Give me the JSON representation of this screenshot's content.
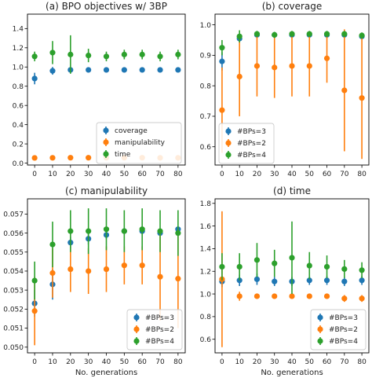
{
  "colors": {
    "blue": "#1f77b4",
    "orange": "#ff7f0e",
    "green": "#2ca02c",
    "frame": "#000000",
    "legend_border": "#cccccc"
  },
  "chart_data": [
    {
      "id": "a",
      "type": "scatter",
      "title": "(a) BPO objectives w/ 3BP",
      "xlabel": "",
      "ylabel": "",
      "x": [
        0,
        10,
        20,
        30,
        40,
        50,
        60,
        70,
        80
      ],
      "xlim": [
        -4,
        84
      ],
      "ylim": [
        -0.02,
        1.55
      ],
      "xticks": [
        0,
        10,
        20,
        30,
        40,
        50,
        60,
        70,
        80
      ],
      "yticks": [
        0.0,
        0.2,
        0.4,
        0.6,
        0.8,
        1.0,
        1.2,
        1.4
      ],
      "ytick_labels": [
        "0.0",
        "0.2",
        "0.4",
        "0.6",
        "0.8",
        "1.0",
        "1.2",
        "1.4"
      ],
      "legend_position": "bottom-right",
      "series": [
        {
          "name": "coverage",
          "color": "#1f77b4",
          "values": [
            0.88,
            0.96,
            0.97,
            0.97,
            0.97,
            0.97,
            0.97,
            0.97,
            0.97
          ],
          "err": [
            0.06,
            0.04,
            0.01,
            0.01,
            0.01,
            0.01,
            0.01,
            0.01,
            0.01
          ]
        },
        {
          "name": "manipulability",
          "color": "#ff7f0e",
          "values": [
            0.054,
            0.055,
            0.056,
            0.056,
            0.056,
            0.056,
            0.056,
            0.055,
            0.055
          ],
          "err": [
            0.004,
            0.004,
            0.004,
            0.004,
            0.004,
            0.004,
            0.004,
            0.004,
            0.004
          ]
        },
        {
          "name": "time",
          "color": "#2ca02c",
          "values": [
            1.11,
            1.15,
            1.13,
            1.12,
            1.11,
            1.13,
            1.13,
            1.11,
            1.13
          ],
          "err": [
            0.05,
            0.12,
            0.2,
            0.07,
            0.05,
            0.05,
            0.05,
            0.05,
            0.05
          ]
        }
      ]
    },
    {
      "id": "b",
      "type": "scatter",
      "title": "(b) coverage",
      "xlabel": "",
      "ylabel": "",
      "x": [
        0,
        10,
        20,
        30,
        40,
        50,
        60,
        70,
        80
      ],
      "xlim": [
        -4,
        84
      ],
      "ylim": [
        0.54,
        1.035
      ],
      "xticks": [
        0,
        10,
        20,
        30,
        40,
        50,
        60,
        70,
        80
      ],
      "yticks": [
        0.6,
        0.7,
        0.8,
        0.9,
        1.0
      ],
      "ytick_labels": [
        "0.6",
        "0.7",
        "0.8",
        "0.9",
        "1.0"
      ],
      "legend_position": "bottom-left",
      "series": [
        {
          "name": "#BPs=3",
          "color": "#1f77b4",
          "values": [
            0.88,
            0.955,
            0.967,
            0.967,
            0.967,
            0.967,
            0.967,
            0.967,
            0.962
          ],
          "err": [
            0.03,
            0.01,
            0.01,
            0.01,
            0.01,
            0.01,
            0.01,
            0.01,
            0.01
          ]
        },
        {
          "name": "#BPs=2",
          "color": "#ff7f0e",
          "values": [
            0.72,
            0.83,
            0.865,
            0.86,
            0.865,
            0.865,
            0.89,
            0.785,
            0.76
          ],
          "err": [
            0.14,
            0.13,
            0.1,
            0.1,
            0.1,
            0.1,
            0.08,
            0.2,
            0.2
          ]
        },
        {
          "name": "#BPs=4",
          "color": "#2ca02c",
          "values": [
            0.925,
            0.962,
            0.97,
            0.967,
            0.97,
            0.97,
            0.97,
            0.97,
            0.965
          ],
          "err": [
            0.025,
            0.02,
            0.01,
            0.01,
            0.01,
            0.01,
            0.01,
            0.01,
            0.01
          ]
        }
      ]
    },
    {
      "id": "c",
      "type": "scatter",
      "title": "(c) manipulability",
      "xlabel": "No. generations",
      "ylabel": "",
      "x": [
        0,
        10,
        20,
        30,
        40,
        50,
        60,
        70,
        80
      ],
      "xlim": [
        -4,
        84
      ],
      "ylim": [
        0.0497,
        0.0578
      ],
      "xticks": [
        0,
        10,
        20,
        30,
        40,
        50,
        60,
        70,
        80
      ],
      "yticks": [
        0.05,
        0.051,
        0.052,
        0.053,
        0.054,
        0.055,
        0.056,
        0.057
      ],
      "ytick_labels": [
        "0.050",
        "0.051",
        "0.052",
        "0.053",
        "0.054",
        "0.055",
        "0.056",
        "0.057"
      ],
      "legend_position": "bottom-right",
      "series": [
        {
          "name": "#BPs=3",
          "color": "#1f77b4",
          "values": [
            0.0523,
            0.0533,
            0.0555,
            0.0557,
            0.0559,
            0.0561,
            0.0561,
            0.056,
            0.0562
          ],
          "err": [
            0.0007,
            0.0008,
            0.0003,
            0.0003,
            0.0002,
            0.0001,
            0.0001,
            0.0001,
            0.0001
          ]
        },
        {
          "name": "#BPs=2",
          "color": "#ff7f0e",
          "values": [
            0.0519,
            0.0539,
            0.0541,
            0.054,
            0.0541,
            0.0543,
            0.0543,
            0.0537,
            0.0536
          ],
          "err": [
            0.0018,
            0.0013,
            0.0012,
            0.0012,
            0.0012,
            0.001,
            0.001,
            0.0023,
            0.0026
          ]
        },
        {
          "name": "#BPs=4",
          "color": "#2ca02c",
          "values": [
            0.0535,
            0.0554,
            0.0561,
            0.0561,
            0.0562,
            0.0561,
            0.0562,
            0.0561,
            0.056
          ],
          "err": [
            0.001,
            0.0012,
            0.0011,
            0.0012,
            0.0011,
            0.0011,
            0.0011,
            0.0011,
            0.0012
          ]
        }
      ]
    },
    {
      "id": "d",
      "type": "scatter",
      "title": "(d) time",
      "xlabel": "No. generations",
      "ylabel": "",
      "x": [
        0,
        10,
        20,
        30,
        40,
        50,
        60,
        70,
        80
      ],
      "xlim": [
        -4,
        84
      ],
      "ylim": [
        0.48,
        1.84
      ],
      "xticks": [
        0,
        10,
        20,
        30,
        40,
        50,
        60,
        70,
        80
      ],
      "yticks": [
        0.6,
        0.8,
        1.0,
        1.2,
        1.4,
        1.6,
        1.8
      ],
      "ytick_labels": [
        "0.6",
        "0.8",
        "1.0",
        "1.2",
        "1.4",
        "1.6",
        "1.8"
      ],
      "legend_position": "bottom-right",
      "series": [
        {
          "name": "#BPs=3",
          "color": "#1f77b4",
          "values": [
            1.11,
            1.12,
            1.13,
            1.11,
            1.11,
            1.12,
            1.12,
            1.11,
            1.12
          ],
          "err": [
            0.05,
            0.05,
            0.05,
            0.04,
            0.04,
            0.04,
            0.04,
            0.04,
            0.04
          ]
        },
        {
          "name": "#BPs=2",
          "color": "#ff7f0e",
          "values": [
            1.13,
            0.98,
            0.98,
            0.98,
            0.98,
            0.98,
            0.98,
            0.96,
            0.96
          ],
          "err": [
            0.6,
            0.04,
            0.02,
            0.02,
            0.02,
            0.02,
            0.02,
            0.03,
            0.03
          ]
        },
        {
          "name": "#BPs=4",
          "color": "#2ca02c",
          "values": [
            1.24,
            1.24,
            1.3,
            1.27,
            1.32,
            1.25,
            1.24,
            1.22,
            1.21
          ],
          "err": [
            0.12,
            0.12,
            0.15,
            0.12,
            0.32,
            0.12,
            0.1,
            0.08,
            0.07
          ]
        }
      ]
    }
  ]
}
